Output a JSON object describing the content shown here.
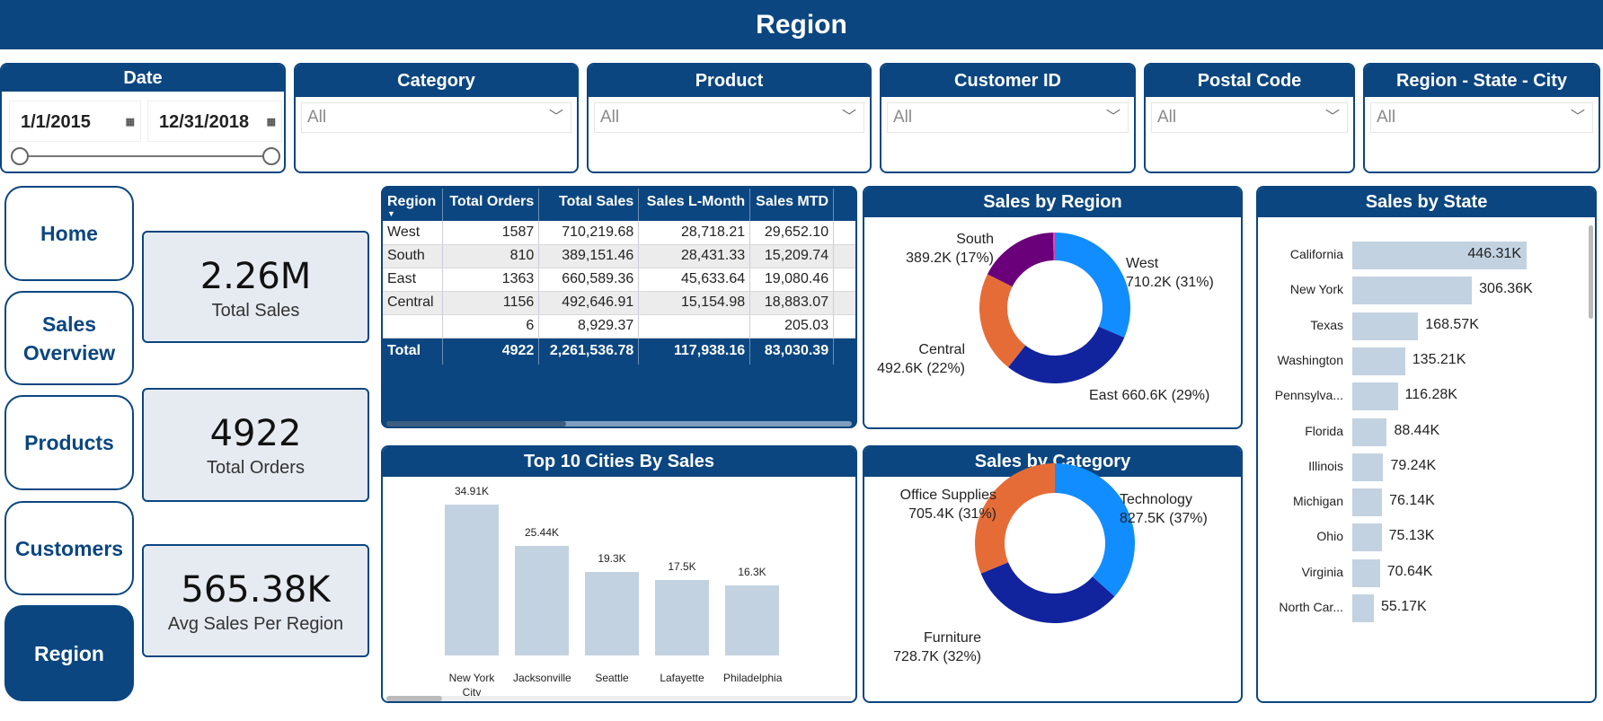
{
  "title": "Region",
  "filters": {
    "date": {
      "label": "Date",
      "start": "1/1/2015",
      "end": "12/31/2018",
      "calendar_icon": "calendar-icon"
    },
    "category": {
      "label": "Category",
      "value": "All"
    },
    "product": {
      "label": "Product",
      "value": "All"
    },
    "customer_id": {
      "label": "Customer ID",
      "value": "All"
    },
    "postal_code": {
      "label": "Postal Code",
      "value": "All"
    },
    "region_state_city": {
      "label": "Region - State - City",
      "value": "All"
    }
  },
  "nav": [
    {
      "label": "Home"
    },
    {
      "label": "Sales Overview"
    },
    {
      "label": "Products"
    },
    {
      "label": "Customers"
    },
    {
      "label": "Region",
      "active": true
    }
  ],
  "kpis": [
    {
      "value": "2.26M",
      "label": "Total Sales"
    },
    {
      "value": "4922",
      "label": "Total Orders"
    },
    {
      "value": "565.38K",
      "label": "Avg Sales Per Region"
    }
  ],
  "table": {
    "columns": [
      "Region",
      "Total Orders",
      "Total Sales",
      "Sales L-Month",
      "Sales MTD"
    ],
    "rows": [
      [
        "West",
        "1587",
        "710,219.68",
        "28,718.21",
        "29,652.10"
      ],
      [
        "South",
        "810",
        "389,151.46",
        "28,431.33",
        "15,209.74"
      ],
      [
        "East",
        "1363",
        "660,589.36",
        "45,633.64",
        "19,080.46"
      ],
      [
        "Central",
        "1156",
        "492,646.91",
        "15,154.98",
        "18,883.07"
      ],
      [
        "",
        "6",
        "8,929.37",
        "",
        "205.03"
      ]
    ],
    "total": [
      "Total",
      "4922",
      "2,261,536.78",
      "117,938.16",
      "83,030.39"
    ]
  },
  "colors": {
    "brand": "#0b4680",
    "bar": "#c2d2e1",
    "c1": "#118dff",
    "c2": "#12239e",
    "c3": "#e66c37",
    "c4": "#6b007b",
    "c5": "#e044a7"
  },
  "chart_data": [
    {
      "type": "bar",
      "title": "Top 10 Cities By Sales",
      "categories": [
        "New York City",
        "Jacksonville",
        "Seattle",
        "Lafayette",
        "Philadelphia"
      ],
      "values": [
        34.91,
        25.44,
        19.3,
        17.5,
        16.3
      ],
      "data_labels": [
        "34.91K",
        "25.44K",
        "19.3K",
        "17.5K",
        "16.3K"
      ],
      "unit": "K"
    },
    {
      "type": "pie",
      "title": "Sales by Region",
      "donut": true,
      "slices": [
        {
          "name": "West",
          "value": 710.2,
          "label": "710.2K (31%)"
        },
        {
          "name": "East",
          "value": 660.6,
          "label": "660.6K (29%)"
        },
        {
          "name": "Central",
          "value": 492.6,
          "label": "492.6K (22%)"
        },
        {
          "name": "South",
          "value": 389.2,
          "label": "389.2K (17%)"
        },
        {
          "name": "",
          "value": 8.9
        }
      ]
    },
    {
      "type": "pie",
      "title": "Sales by Category",
      "donut": true,
      "slices": [
        {
          "name": "Technology",
          "value": 827.5,
          "label": "827.5K (37%)"
        },
        {
          "name": "Furniture",
          "value": 728.7,
          "label": "728.7K (32%)"
        },
        {
          "name": "Office Supplies",
          "value": 705.4,
          "label": "705.4K (31%)"
        }
      ]
    },
    {
      "type": "bar",
      "orientation": "horizontal",
      "title": "Sales by State",
      "categories": [
        "California",
        "New York",
        "Texas",
        "Washington",
        "Pennsylva...",
        "Florida",
        "Illinois",
        "Michigan",
        "Ohio",
        "Virginia",
        "North Car..."
      ],
      "values": [
        446.31,
        306.36,
        168.57,
        135.21,
        116.28,
        88.44,
        79.24,
        76.14,
        75.13,
        70.64,
        55.17
      ],
      "data_labels": [
        "446.31K",
        "306.36K",
        "168.57K",
        "135.21K",
        "116.28K",
        "88.44K",
        "79.24K",
        "76.14K",
        "75.13K",
        "70.64K",
        "55.17K"
      ],
      "unit": "K"
    }
  ]
}
